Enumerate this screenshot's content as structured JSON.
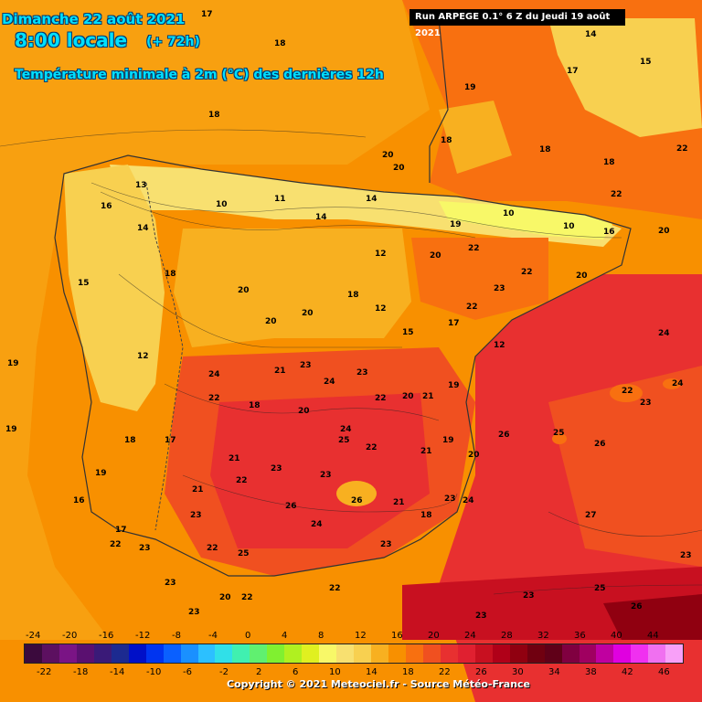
{
  "header": {
    "date": "Dimanche 22 août 2021",
    "local_time": "8:00 locale",
    "lead": "(+ 72h)",
    "subtitle": "Température minimale à 2m (°C) des dernières 12h",
    "run": "Run ARPEGE 0.1° 6 Z du Jeudi 19 août 2021"
  },
  "legend": {
    "top_ticks": [
      "-24",
      "-20",
      "-16",
      "-12",
      "-8",
      "-4",
      "0",
      "4",
      "8",
      "12",
      "16",
      "20",
      "24",
      "28",
      "32",
      "36",
      "40",
      "44"
    ],
    "bottom_ticks": [
      "-22",
      "-18",
      "-14",
      "-10",
      "-6",
      "-2",
      "2",
      "6",
      "10",
      "14",
      "18",
      "22",
      "26",
      "30",
      "34",
      "38",
      "42",
      "46"
    ],
    "colors": [
      "#3b0a3d",
      "#5c1060",
      "#7a1485",
      "#5a1070",
      "#3a1a78",
      "#1c2a90",
      "#0010c8",
      "#0034f0",
      "#0a60ff",
      "#1a90ff",
      "#2cc0ff",
      "#30e0e8",
      "#40f0b0",
      "#60f070",
      "#80f030",
      "#b0f020",
      "#e0f020",
      "#f8f868",
      "#f8e070",
      "#f8d050",
      "#f8b020",
      "#f89000",
      "#f87010",
      "#f05020",
      "#e83030",
      "#e02030",
      "#c81020",
      "#b00018",
      "#900010",
      "#700010",
      "#600018",
      "#800040",
      "#a00060",
      "#c000a0",
      "#e000e0",
      "#f030f0",
      "#f070f0",
      "#f8a0f8"
    ]
  },
  "map_labels": [
    "17",
    "18",
    "19",
    "20",
    "21",
    "22",
    "23",
    "24",
    "25",
    "26",
    "27",
    "14",
    "15",
    "16",
    "13",
    "12",
    "11",
    "10"
  ],
  "copyright": "Copyright © 2021 Meteociel.fr - Source Météo-France"
}
